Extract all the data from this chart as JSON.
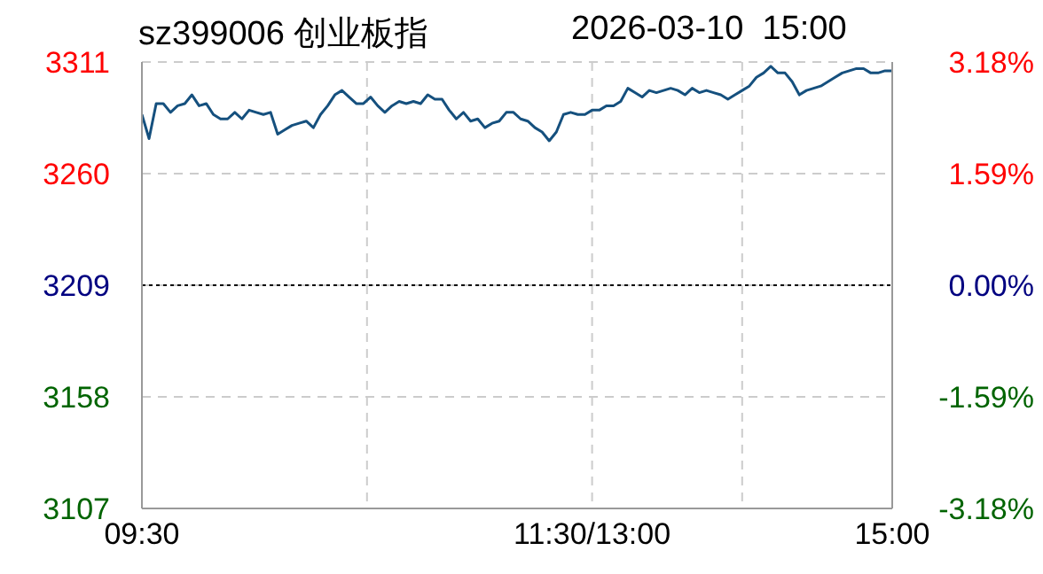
{
  "chart_data": {
    "type": "line",
    "title": "sz399006 创业板指",
    "subtitle": "2026-03-10  15:00",
    "categories": [
      "09:30",
      null,
      null,
      null,
      null,
      null,
      null,
      null,
      null,
      null,
      null,
      null,
      null,
      null,
      null,
      null,
      null,
      null,
      null,
      null,
      null,
      null,
      null,
      null,
      null,
      null,
      null,
      null,
      null,
      null,
      null,
      null,
      null,
      null,
      null,
      null,
      null,
      null,
      null,
      null,
      null,
      null,
      null,
      null,
      null,
      null,
      null,
      null,
      null,
      null,
      null,
      null,
      null,
      null,
      null,
      null,
      null,
      null,
      null,
      null,
      null,
      null,
      null,
      "11:30/13:00",
      null,
      null,
      null,
      null,
      null,
      null,
      null,
      null,
      null,
      null,
      null,
      null,
      null,
      null,
      null,
      null,
      null,
      null,
      null,
      null,
      null,
      null,
      null,
      null,
      null,
      null,
      null,
      null,
      null,
      null,
      null,
      null,
      null,
      null,
      null,
      null,
      null,
      null,
      null,
      null,
      null,
      "15:00"
    ],
    "series": [
      {
        "color": "#15507e",
        "values": [
          3287,
          3276,
          3292,
          3292,
          3288,
          3291,
          3292,
          3296,
          3291,
          3292,
          3287,
          3285,
          3285,
          3288,
          3285,
          3289,
          3288,
          3287,
          3288,
          3278,
          3280,
          3282,
          3283,
          3284,
          3281,
          3287,
          3291,
          3296,
          3298,
          3295,
          3292,
          3292,
          3295,
          3291,
          3288,
          3291,
          3293,
          3292,
          3293,
          3292,
          3296,
          3294,
          3294,
          3289,
          3285,
          3288,
          3284,
          3285,
          3281,
          3283,
          3284,
          3288,
          3288,
          3285,
          3284,
          3281,
          3279,
          3275,
          3279,
          3287,
          3288,
          3287,
          3287,
          3289,
          3289,
          3291,
          3291,
          3293,
          3299,
          3297,
          3295,
          3298,
          3297,
          3298,
          3299,
          3298,
          3296,
          3299,
          3297,
          3298,
          3297,
          3296,
          3294,
          3296,
          3298,
          3300,
          3304,
          3306,
          3309,
          3306,
          3306,
          3302,
          3296,
          3298,
          3299,
          3300,
          3302,
          3304,
          3306,
          3307,
          3308,
          3308,
          3306,
          3306,
          3307,
          3307
        ]
      }
    ],
    "ylim": [
      3107,
      3311
    ],
    "yticks": [
      3107,
      3158,
      3209,
      3260,
      3311
    ],
    "y2lim": [
      -3.18,
      3.18
    ],
    "y2ticks": [
      {
        "value": -3.18,
        "label": "-3.18%"
      },
      {
        "value": -1.59,
        "label": "-1.59%"
      },
      {
        "value": 0,
        "label": "0.00%"
      },
      {
        "value": 1.59,
        "label": "1.59%"
      },
      {
        "value": 3.18,
        "label": "3.18%"
      }
    ],
    "ref_lines": [
      {
        "axis": "y",
        "value": 3209,
        "color": "#000000",
        "line_style": "dotted"
      }
    ],
    "grid": true,
    "line_style": "solid",
    "marker": "none"
  }
}
